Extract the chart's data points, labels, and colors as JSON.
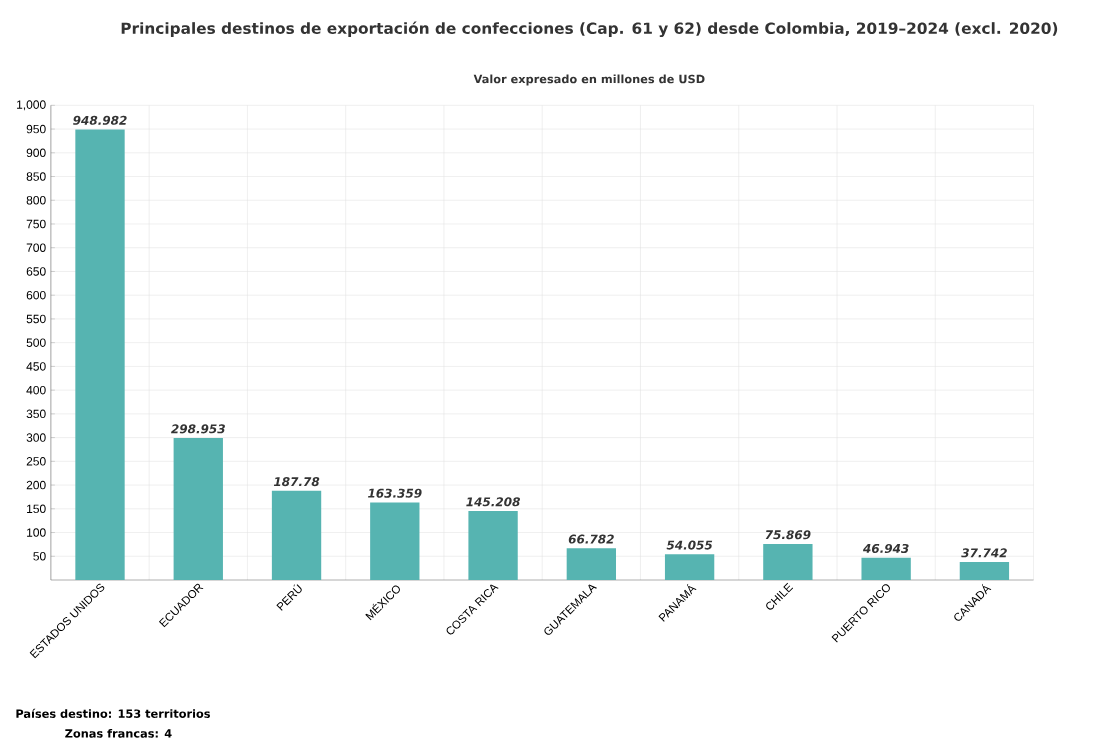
{
  "chart_data": {
    "type": "bar",
    "title": "Principales destinos de exportación de confecciones (Cap. 61 y 62) desde Colombia, 2019–2024 (excl. 2020)",
    "subtitle": "Valor expresado en millones de USD",
    "categories": [
      "ESTADOS UNIDOS",
      "ECUADOR",
      "PERÚ",
      "MÉXICO",
      "COSTA RICA",
      "GUATEMALA",
      "PANAMÁ",
      "CHILE",
      "PUERTO RICO",
      "CANADÁ"
    ],
    "values": [
      948.982,
      298.953,
      187.78,
      163.359,
      145.208,
      66.782,
      54.055,
      75.869,
      46.943,
      37.742
    ],
    "color": "#56b4b1",
    "data_labels": true,
    "ylim": [
      0,
      1000
    ],
    "yticks": [
      50,
      100,
      150,
      200,
      250,
      300,
      350,
      400,
      450,
      500,
      550,
      600,
      650,
      700,
      750,
      800,
      850,
      900,
      950,
      {
        "value": 1000,
        "label": "1,000"
      }
    ],
    "grid": true,
    "annotations": [
      "Países destino: 153 territorios",
      "Zonas francas: 4"
    ]
  }
}
